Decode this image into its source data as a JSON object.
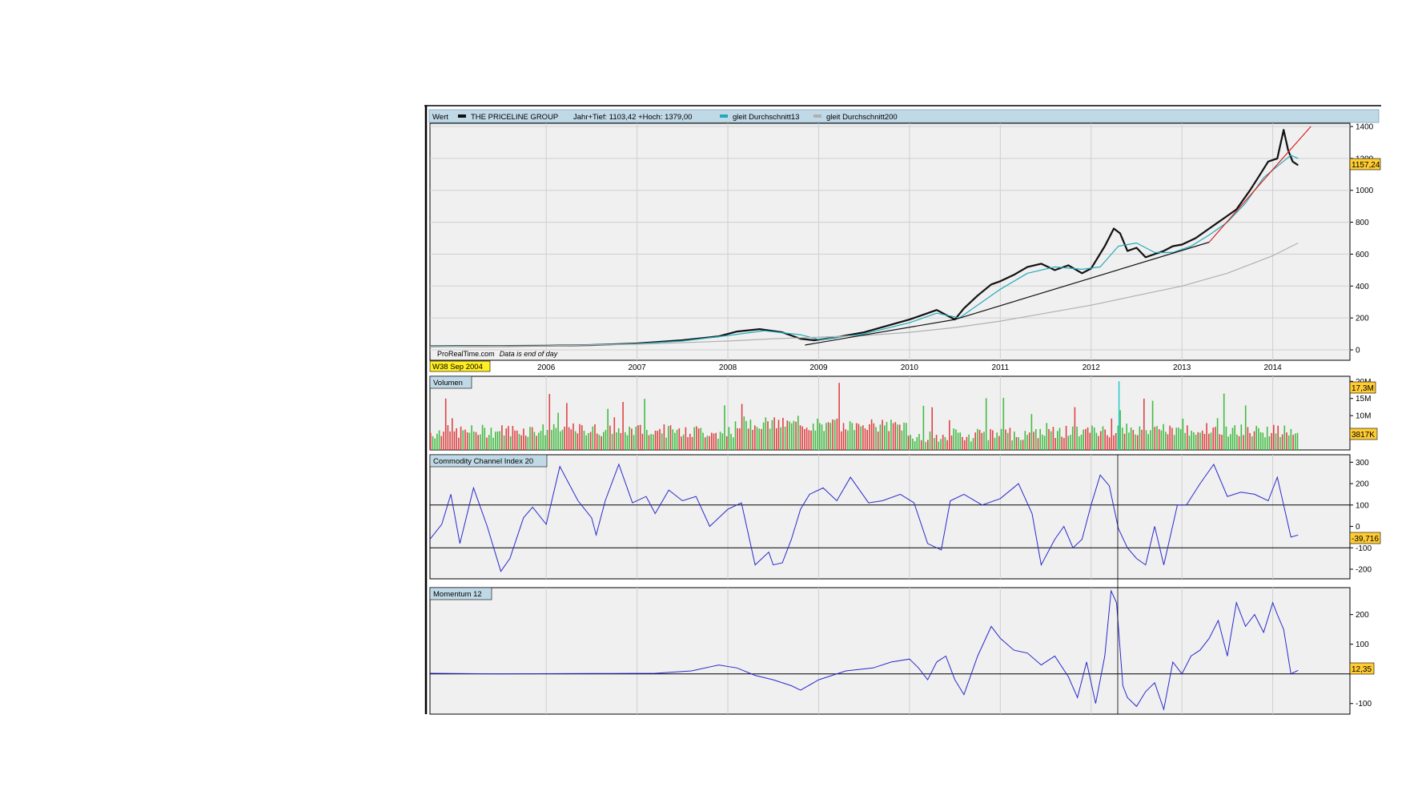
{
  "chart_data": [
    {
      "type": "line",
      "panel": "price",
      "header_tag": "Wert",
      "legend": [
        {
          "label": "THE PRICELINE GROUP",
          "color": "#111111"
        },
        {
          "label": "Jahr+Tief: 1103,42 +Hoch: 1379,00",
          "color": ""
        },
        {
          "label": "gleit Durchschnitt13",
          "color": "#22aabb"
        },
        {
          "label": "gleit Durchschnitt200",
          "color": "#b0b0b0"
        }
      ],
      "yticks": [
        0,
        200,
        400,
        600,
        800,
        1000,
        1200,
        1400
      ],
      "ylim": [
        0,
        1400
      ],
      "xlim": [
        2004.72,
        2014.85
      ],
      "xticks": [
        "2006",
        "2007",
        "2008",
        "2009",
        "2010",
        "2011",
        "2012",
        "2013",
        "2014"
      ],
      "start_label": "W38 Sep 2004",
      "last_value_label": "1157,24",
      "watermark": "ProRealTime.com",
      "watermark_note": "Data is end of day",
      "series": [
        {
          "name": "THE PRICELINE GROUP",
          "color": "#111111",
          "x": [
            2004.72,
            2005.0,
            2005.5,
            2006.0,
            2006.5,
            2007.0,
            2007.5,
            2007.9,
            2008.1,
            2008.35,
            2008.6,
            2008.8,
            2008.95,
            2009.2,
            2009.5,
            2009.75,
            2010.0,
            2010.15,
            2010.3,
            2010.5,
            2010.6,
            2010.75,
            2010.9,
            2011.0,
            2011.15,
            2011.3,
            2011.45,
            2011.6,
            2011.75,
            2011.9,
            2012.0,
            2012.15,
            2012.25,
            2012.32,
            2012.4,
            2012.5,
            2012.6,
            2012.7,
            2012.8,
            2012.9,
            2013.0,
            2013.15,
            2013.3,
            2013.45,
            2013.6,
            2013.75,
            2013.85,
            2013.95,
            2014.05,
            2014.12,
            2014.17,
            2014.22,
            2014.28
          ],
          "y": [
            22,
            23,
            24,
            26,
            30,
            40,
            60,
            85,
            115,
            130,
            110,
            70,
            60,
            80,
            110,
            150,
            190,
            220,
            250,
            190,
            260,
            340,
            410,
            430,
            470,
            520,
            540,
            500,
            530,
            480,
            510,
            650,
            760,
            730,
            620,
            640,
            580,
            600,
            620,
            650,
            660,
            700,
            760,
            820,
            880,
            1000,
            1090,
            1180,
            1200,
            1379,
            1250,
            1180,
            1157
          ]
        },
        {
          "name": "gleit Durchschnitt13",
          "color": "#22aabb",
          "x": [
            2004.72,
            2006.0,
            2007.0,
            2007.5,
            2008.0,
            2008.4,
            2008.8,
            2009.0,
            2009.5,
            2010.0,
            2010.3,
            2010.55,
            2010.8,
            2011.0,
            2011.3,
            2011.6,
            2011.9,
            2012.1,
            2012.3,
            2012.5,
            2012.7,
            2012.9,
            2013.1,
            2013.3,
            2013.5,
            2013.7,
            2013.9,
            2014.05,
            2014.2,
            2014.28
          ],
          "y": [
            22,
            25,
            38,
            55,
            90,
            120,
            95,
            65,
            100,
            170,
            230,
            200,
            300,
            380,
            480,
            520,
            505,
            520,
            650,
            670,
            610,
            610,
            650,
            720,
            800,
            920,
            1080,
            1150,
            1220,
            1200
          ]
        },
        {
          "name": "gleit Durchschnitt200",
          "color": "#b0b0b0",
          "x": [
            2004.72,
            2006.0,
            2007.0,
            2008.0,
            2008.5,
            2009.0,
            2009.5,
            2010.0,
            2010.5,
            2011.0,
            2011.5,
            2012.0,
            2012.5,
            2013.0,
            2013.5,
            2014.0,
            2014.28
          ],
          "y": [
            20,
            25,
            35,
            55,
            70,
            80,
            90,
            110,
            140,
            180,
            230,
            280,
            340,
            400,
            480,
            590,
            670
          ]
        },
        {
          "name": "trendline",
          "color": "#111111",
          "x": [
            2008.85,
            2010.5,
            2013.3
          ],
          "y": [
            30,
            190,
            675
          ]
        },
        {
          "name": "trendline-upper",
          "color": "#dd2222",
          "x": [
            2013.3,
            2014.0,
            2014.42
          ],
          "y": [
            675,
            1130,
            1400
          ]
        }
      ]
    },
    {
      "type": "bar",
      "panel": "volume",
      "title": "Volumen",
      "yticks": [
        "10M",
        "15M",
        "20M"
      ],
      "ytick_values": [
        10,
        15,
        20
      ],
      "ylim": [
        0,
        21
      ],
      "value_labels": [
        "17,3M",
        "3817K"
      ],
      "up_color": "#44bb44",
      "down_color": "#dd4444",
      "spike_color": "#33cccc"
    },
    {
      "type": "line",
      "panel": "cci",
      "title": "Commodity Channel Index 20",
      "yticks": [
        300,
        200,
        100,
        0,
        -100,
        -200
      ],
      "ylim": [
        -230,
        320
      ],
      "reference_lines": [
        100,
        -100
      ],
      "last_value_label": "-39,716",
      "color": "#2a2acc",
      "x": [
        2004.72,
        2004.85,
        2004.95,
        2005.05,
        2005.2,
        2005.35,
        2005.5,
        2005.6,
        2005.75,
        2005.85,
        2006.0,
        2006.15,
        2006.35,
        2006.5,
        2006.55,
        2006.65,
        2006.8,
        2006.95,
        2007.1,
        2007.2,
        2007.35,
        2007.5,
        2007.65,
        2007.8,
        2008.0,
        2008.15,
        2008.3,
        2008.45,
        2008.5,
        2008.6,
        2008.7,
        2008.8,
        2008.9,
        2009.05,
        2009.2,
        2009.35,
        2009.55,
        2009.7,
        2009.9,
        2010.05,
        2010.2,
        2010.35,
        2010.45,
        2010.6,
        2010.8,
        2011.0,
        2011.2,
        2011.35,
        2011.45,
        2011.6,
        2011.7,
        2011.8,
        2011.9,
        2012.0,
        2012.1,
        2012.2,
        2012.3,
        2012.4,
        2012.5,
        2012.6,
        2012.7,
        2012.8,
        2012.95,
        2013.05,
        2013.2,
        2013.35,
        2013.5,
        2013.65,
        2013.8,
        2013.95,
        2014.05,
        2014.12,
        2014.2,
        2014.28
      ],
      "y": [
        -60,
        10,
        150,
        -80,
        180,
        0,
        -210,
        -150,
        40,
        90,
        10,
        280,
        120,
        40,
        -40,
        120,
        290,
        110,
        140,
        60,
        170,
        120,
        140,
        0,
        80,
        110,
        -180,
        -120,
        -180,
        -170,
        -60,
        80,
        150,
        180,
        120,
        230,
        110,
        120,
        150,
        110,
        -80,
        -110,
        120,
        150,
        100,
        130,
        200,
        60,
        -180,
        -60,
        0,
        -100,
        -60,
        100,
        240,
        190,
        -10,
        -100,
        -150,
        -180,
        0,
        -180,
        100,
        100,
        200,
        290,
        140,
        160,
        150,
        120,
        230,
        100,
        -50,
        -40
      ]
    },
    {
      "type": "line",
      "panel": "momentum",
      "title": "Momentum 12",
      "yticks": [
        200,
        100,
        -100
      ],
      "ylim": [
        -125,
        280
      ],
      "reference_lines": [
        0
      ],
      "last_value_label": "12,35",
      "color": "#2a2acc",
      "x": [
        2004.72,
        2005.5,
        2006.5,
        2007.2,
        2007.6,
        2007.9,
        2008.1,
        2008.3,
        2008.5,
        2008.7,
        2008.8,
        2009.0,
        2009.3,
        2009.6,
        2009.8,
        2010.0,
        2010.1,
        2010.2,
        2010.3,
        2010.4,
        2010.5,
        2010.6,
        2010.75,
        2010.9,
        2011.0,
        2011.15,
        2011.3,
        2011.45,
        2011.6,
        2011.75,
        2011.85,
        2011.95,
        2012.05,
        2012.15,
        2012.22,
        2012.28,
        2012.35,
        2012.4,
        2012.5,
        2012.6,
        2012.7,
        2012.8,
        2012.9,
        2013.0,
        2013.1,
        2013.2,
        2013.3,
        2013.4,
        2013.5,
        2013.6,
        2013.7,
        2013.8,
        2013.9,
        2014.0,
        2014.05,
        2014.12,
        2014.2,
        2014.28
      ],
      "y": [
        2,
        0,
        1,
        2,
        10,
        30,
        20,
        -5,
        -20,
        -40,
        -55,
        -20,
        10,
        20,
        40,
        50,
        20,
        -20,
        40,
        60,
        -20,
        -70,
        60,
        160,
        120,
        80,
        70,
        30,
        60,
        -10,
        -80,
        40,
        -100,
        60,
        280,
        240,
        -40,
        -80,
        -110,
        -60,
        -30,
        -120,
        40,
        0,
        60,
        80,
        120,
        180,
        60,
        240,
        160,
        200,
        140,
        240,
        200,
        150,
        0,
        12
      ]
    }
  ]
}
